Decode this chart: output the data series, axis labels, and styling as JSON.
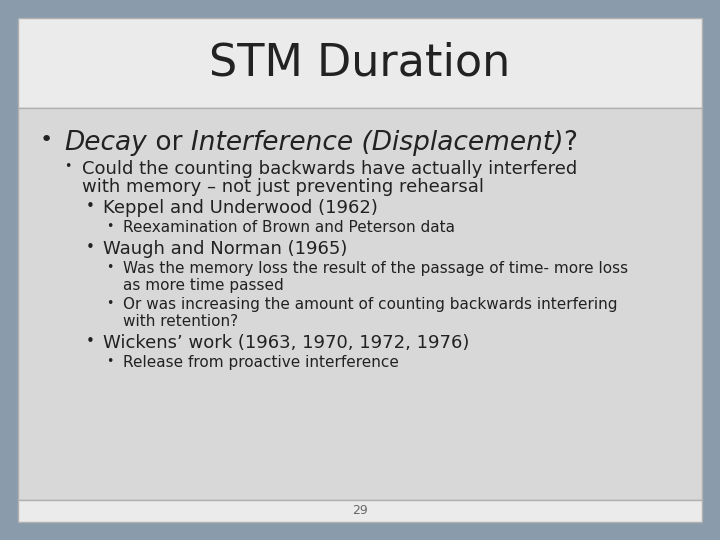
{
  "title": "STM Duration",
  "background_outer": "#8a9bab",
  "background_title": "#ebebeb",
  "background_body": "#d8d8d8",
  "border_color": "#b0b0b0",
  "text_color": "#222222",
  "page_number": "29",
  "title_fontsize": 32,
  "content": [
    {
      "level": 1,
      "text_parts": [
        {
          "text": "Decay",
          "italic": true
        },
        {
          "text": " or ",
          "italic": false
        },
        {
          "text": "Interference (Displacement)",
          "italic": true
        },
        {
          "text": "?",
          "italic": false
        }
      ]
    },
    {
      "level": 2,
      "lines": [
        "Could the counting backwards have actually interfered",
        "with memory – not just preventing rehearsal"
      ]
    },
    {
      "level": 3,
      "lines": [
        "Keppel and Underwood (1962)"
      ]
    },
    {
      "level": 4,
      "lines": [
        "Reexamination of Brown and Peterson data"
      ]
    },
    {
      "level": 3,
      "lines": [
        "Waugh and Norman (1965)"
      ]
    },
    {
      "level": 4,
      "lines": [
        "Was the memory loss the result of the passage of time- more loss",
        "as more time passed"
      ]
    },
    {
      "level": 4,
      "lines": [
        "Or was increasing the amount of counting backwards interfering",
        "with retention?"
      ]
    },
    {
      "level": 3,
      "lines": [
        "Wickens’ work (1963, 1970, 1972, 1976)"
      ]
    },
    {
      "level": 4,
      "lines": [
        "Release from proactive interference"
      ]
    }
  ]
}
